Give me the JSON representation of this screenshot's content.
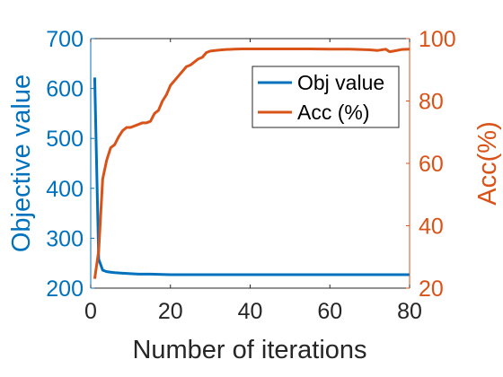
{
  "chart_data": {
    "type": "line",
    "title": "",
    "xlabel": "Number of iterations",
    "ylabel_left": "Objective value",
    "ylabel_right": "Acc(%)",
    "xlim": [
      0,
      80
    ],
    "ylim_left": [
      200,
      700
    ],
    "ylim_right": [
      20,
      100
    ],
    "xticks": [
      "0",
      "20",
      "40",
      "60",
      "80"
    ],
    "yticks_left": [
      "200",
      "300",
      "400",
      "500",
      "600",
      "700"
    ],
    "yticks_right": [
      "20",
      "40",
      "60",
      "80",
      "100"
    ],
    "grid": false,
    "legend_position": "top-right",
    "series": [
      {
        "name": "Obj value",
        "axis": "left",
        "color": "#0072BD",
        "x": [
          1,
          2,
          3,
          4,
          5,
          6,
          8,
          10,
          12,
          15,
          20,
          25,
          30,
          40,
          50,
          60,
          70,
          75,
          80
        ],
        "y": [
          622,
          258,
          236,
          233,
          232,
          231,
          230,
          229,
          228,
          228,
          227,
          227,
          227,
          227,
          227,
          227,
          227,
          227,
          227
        ]
      },
      {
        "name": "Acc (%)",
        "axis": "right",
        "color": "#D95319",
        "x": [
          1,
          2,
          3,
          4,
          5,
          6,
          7,
          8,
          9,
          10,
          12,
          13,
          14,
          15,
          16,
          17,
          18,
          19,
          20,
          21,
          22,
          23,
          24,
          25,
          26,
          27,
          28,
          29,
          30,
          32,
          34,
          36,
          38,
          40,
          45,
          50,
          55,
          60,
          65,
          70,
          72,
          74,
          75,
          76,
          78,
          80
        ],
        "y": [
          23,
          32,
          55,
          61,
          65,
          66,
          68.5,
          70.5,
          71.5,
          71.5,
          72.5,
          73,
          73,
          73.5,
          76,
          77,
          80,
          82,
          85,
          86.5,
          88,
          89.5,
          91,
          91.5,
          92.5,
          93.5,
          94,
          95.5,
          96,
          96.3,
          96.5,
          96.6,
          96.7,
          96.7,
          96.7,
          96.7,
          96.7,
          96.6,
          96.6,
          96.4,
          96.2,
          96.6,
          95.8,
          96.0,
          96.5,
          96.6
        ]
      }
    ]
  }
}
